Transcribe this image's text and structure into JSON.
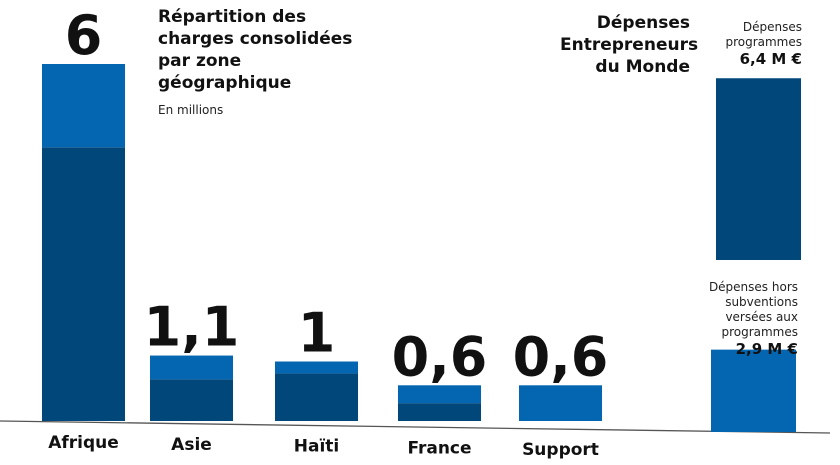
{
  "chart_data": [
    {
      "type": "bar",
      "stacked": true,
      "title": "Répartition des charges consolidées par zone géographique",
      "subtitle": "En millions",
      "categories": [
        "Afrique",
        "Asie",
        "Haïti",
        "France",
        "Support"
      ],
      "totals_labels": [
        "6",
        "1,1",
        "1",
        "0,6",
        "0,6"
      ],
      "totals": [
        6,
        1.1,
        1,
        0.6,
        0.6
      ],
      "series": [
        {
          "values": [
            4.6,
            0.7,
            0.8,
            0.3,
            0.0
          ],
          "color": "#02477a"
        },
        {
          "values": [
            1.4,
            0.4,
            0.2,
            0.3,
            0.6
          ],
          "color": "#0466b0"
        }
      ],
      "grid": false
    },
    {
      "type": "bar",
      "title": "Dépenses Entrepreneurs du Monde",
      "categories": [
        "Dépenses programmes",
        "Dépenses hors subventions versées aux programmes"
      ],
      "values": [
        6.4,
        2.9
      ],
      "value_labels": [
        "6,4 M €",
        "2,9 M €"
      ],
      "colors": [
        "#02477a",
        "#0466b0"
      ],
      "grid": false
    }
  ]
}
